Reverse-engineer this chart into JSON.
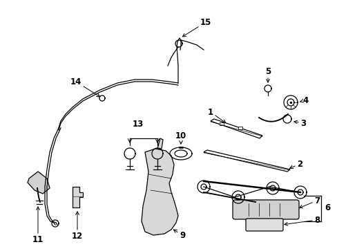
{
  "background_color": "#ffffff",
  "line_color": "#000000",
  "label_fontsize": 8.5,
  "fig_width": 4.89,
  "fig_height": 3.6,
  "dpi": 100
}
